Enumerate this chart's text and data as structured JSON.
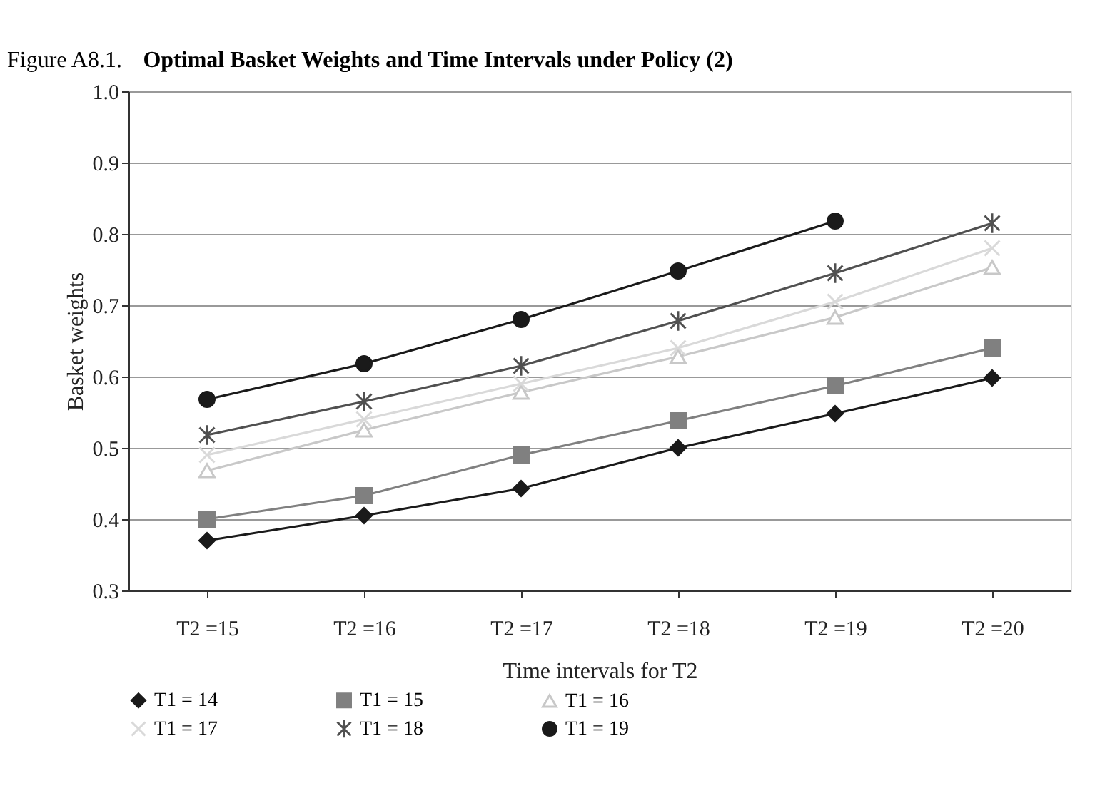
{
  "chart_data": {
    "type": "line",
    "title": "Figure A8.1. Optimal Basket Weights and Time Intervals under Policy (2)",
    "xlabel": "Time intervals for T2",
    "ylabel": "Basket weights",
    "categories": [
      "T2 =15",
      "T2 =16",
      "T2 =17",
      "T2 =18",
      "T2 =19",
      "T2 =20"
    ],
    "series": [
      {
        "name": "T1 = 14",
        "color": "#1a1a1a",
        "marker": "diamond",
        "values": [
          0.37,
          0.405,
          0.443,
          0.5,
          0.548,
          0.598
        ]
      },
      {
        "name": "T1 = 15",
        "color": "#808080",
        "marker": "square",
        "values": [
          0.4,
          0.433,
          0.49,
          0.538,
          0.587,
          0.64
        ]
      },
      {
        "name": "T1 = 16",
        "color": "#c8c8c8",
        "marker": "triangle",
        "values": [
          0.468,
          0.525,
          0.578,
          0.628,
          0.683,
          0.753
        ]
      },
      {
        "name": "T1 = 17",
        "color": "#d9d9d9",
        "marker": "cross",
        "values": [
          0.49,
          0.54,
          0.59,
          0.64,
          0.705,
          0.78
        ]
      },
      {
        "name": "T1 = 18",
        "color": "#505050",
        "marker": "cross",
        "values": [
          0.518,
          0.565,
          0.615,
          0.678,
          0.745,
          0.815
        ]
      },
      {
        "name": "T1 = 19",
        "color": "#1a1a1a",
        "marker": "circle",
        "values": [
          0.568,
          0.618,
          0.68,
          0.748,
          0.818,
          null
        ]
      }
    ],
    "ylim": [
      0.3,
      1.0
    ],
    "yticks": [
      0.3,
      0.4,
      0.5,
      0.6,
      0.7,
      0.8,
      0.9,
      {
        "value": 1,
        "label": "1.0"
      }
    ],
    "grid": "y",
    "legend": "bottom",
    "line_style": "solid"
  }
}
